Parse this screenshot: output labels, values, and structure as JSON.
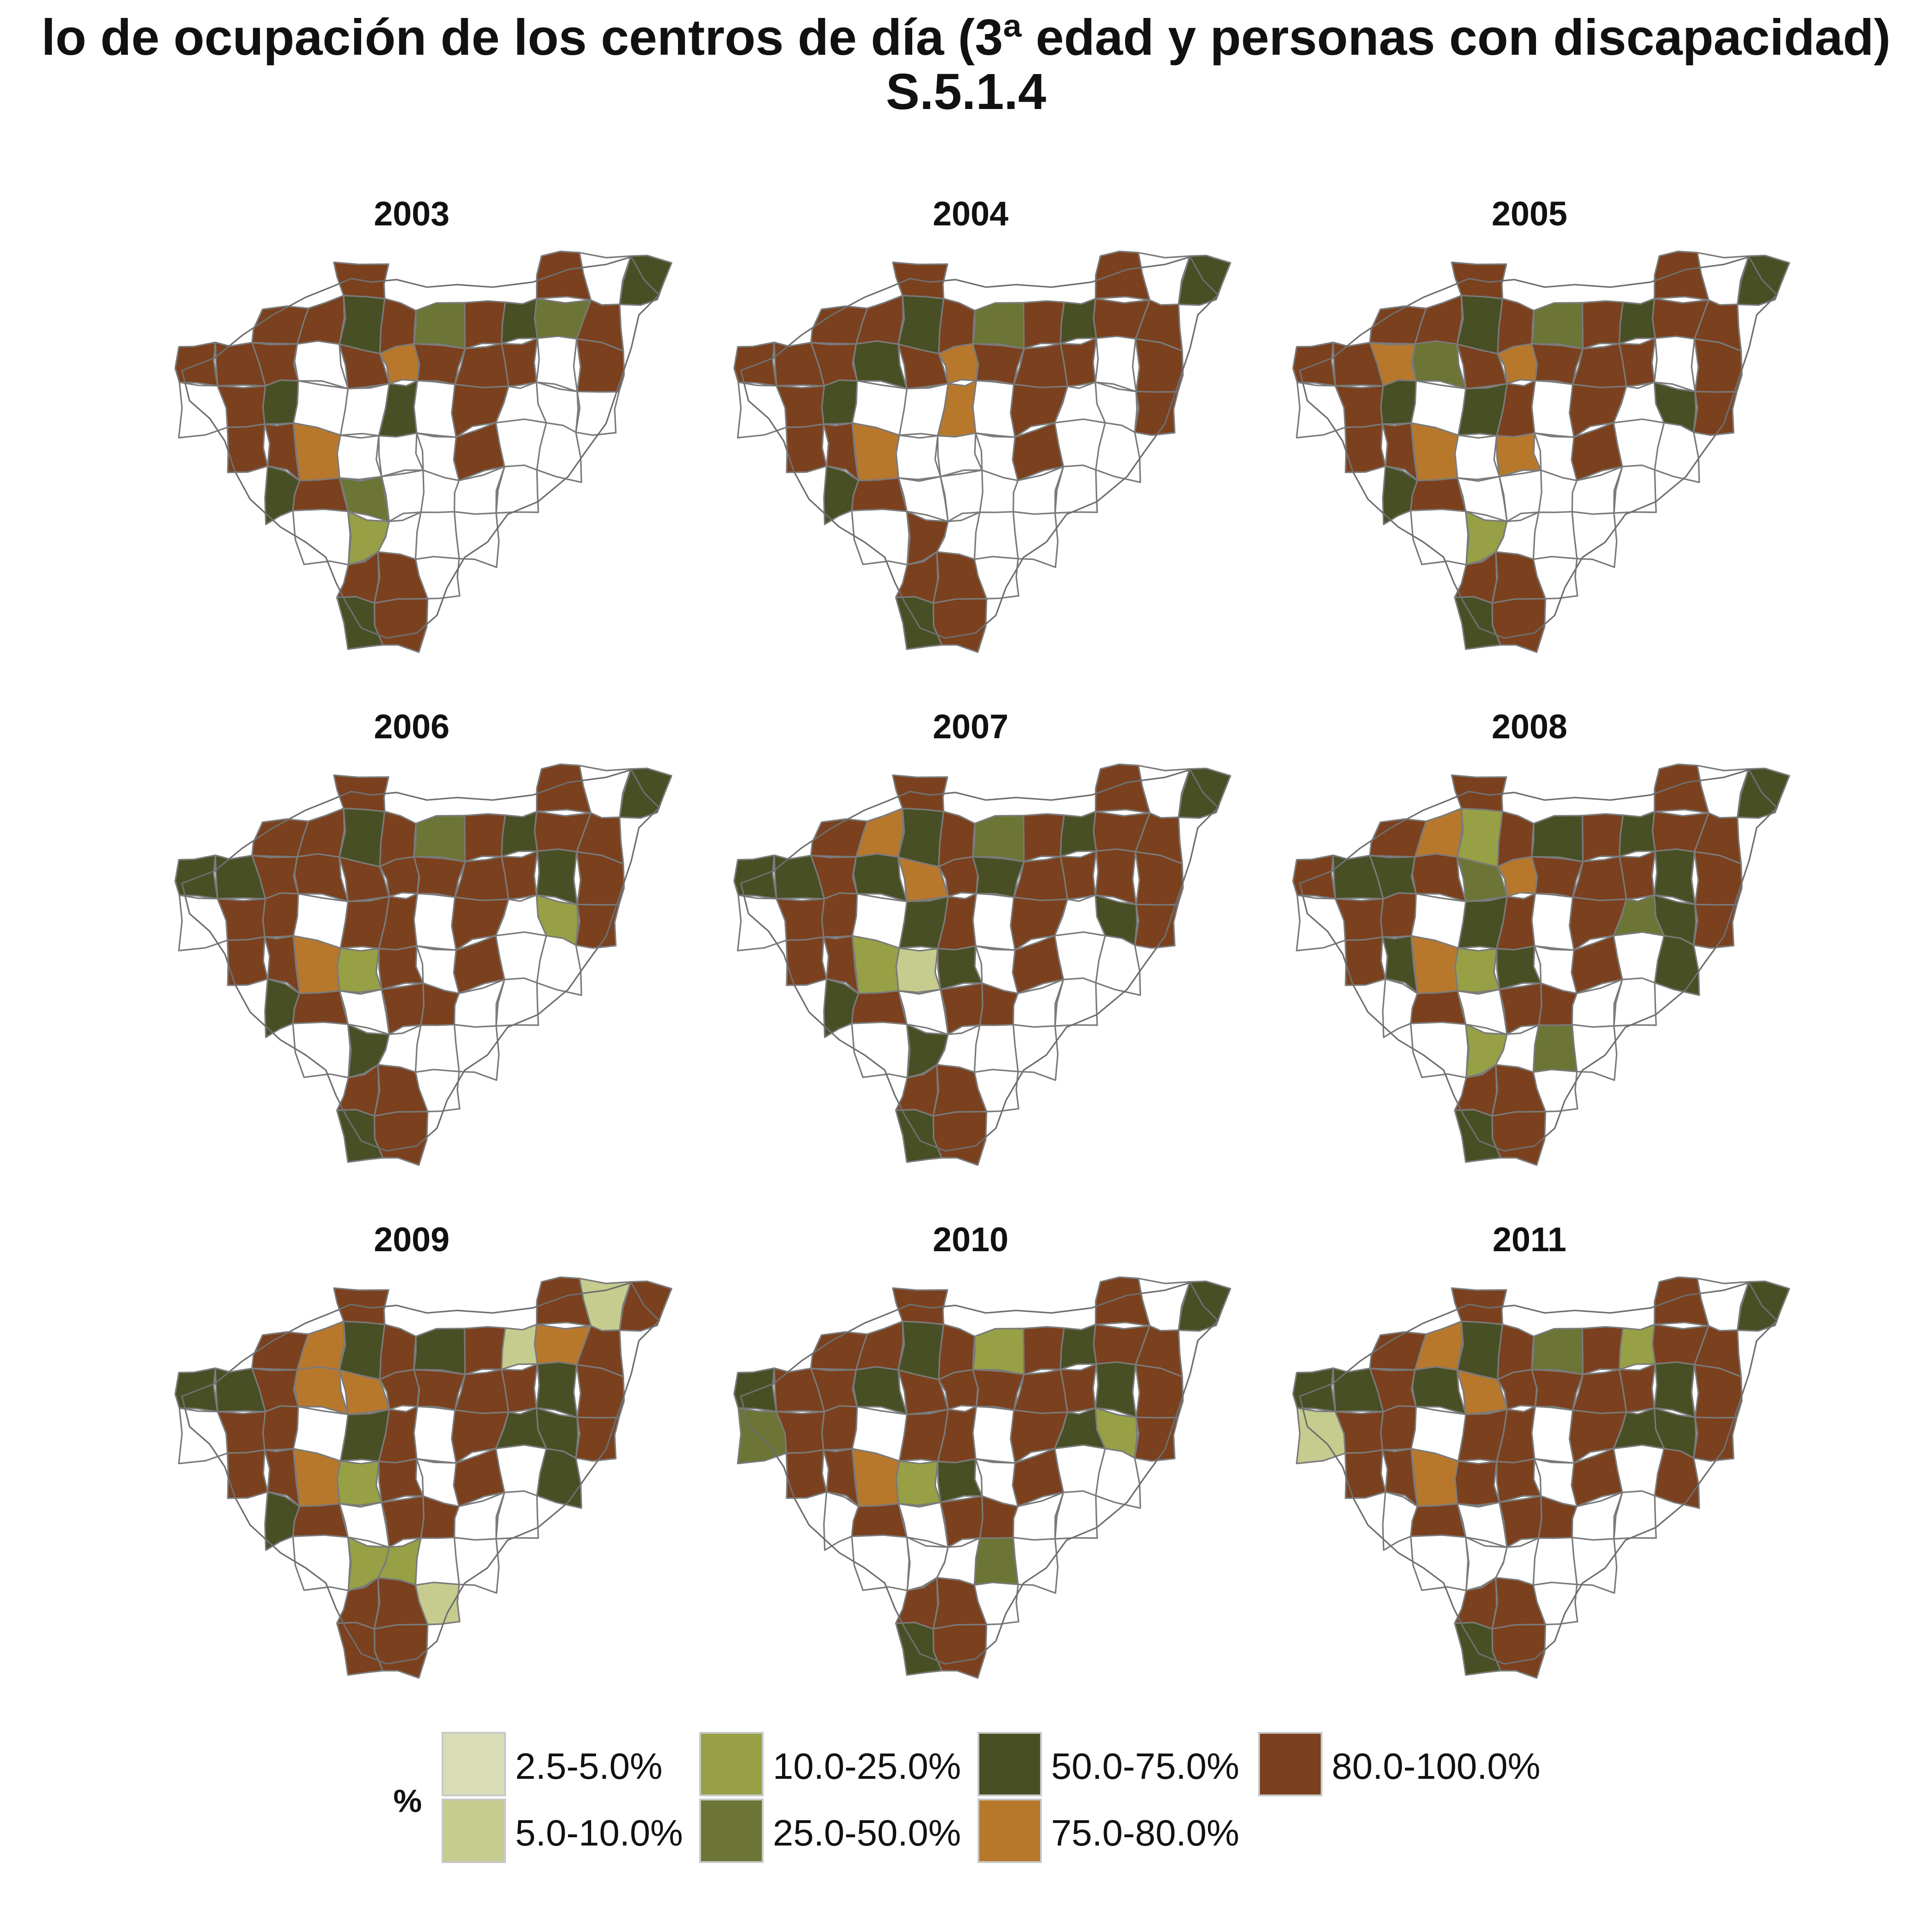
{
  "title": {
    "line1": "lo de ocupación de los centros de día (3ª edad y personas con discapacidad)",
    "line2": "S.5.1.4"
  },
  "legend": {
    "title": "%",
    "items": [
      {
        "label": "2.5-5.0%",
        "color": "#d8ddb8"
      },
      {
        "label": "5.0-10.0%",
        "color": "#c5cc8e"
      },
      {
        "label": "10.0-25.0%",
        "color": "#97a045"
      },
      {
        "label": "25.0-50.0%",
        "color": "#6c7535"
      },
      {
        "label": "50.0-75.0%",
        "color": "#484f24"
      },
      {
        "label": "75.0-80.0%",
        "color": "#b8782c"
      },
      {
        "label": "80.0-100.0%",
        "color": "#7b401d"
      }
    ]
  },
  "maps": [
    {
      "year": "2003",
      "fills": [
        6,
        6,
        0,
        4,
        6,
        6,
        4,
        6,
        3,
        6,
        4,
        3,
        6,
        6,
        6,
        6,
        0,
        6,
        5,
        6,
        6,
        6,
        0,
        6,
        0,
        6,
        4,
        0,
        0,
        4,
        0,
        6,
        0,
        0,
        0,
        6,
        6,
        5,
        0,
        0,
        0,
        6,
        0,
        0,
        4,
        6,
        3,
        0,
        0,
        0,
        0,
        0,
        2,
        0,
        0,
        0
      ]
    },
    {
      "year": "2004",
      "fills": [
        6,
        6,
        0,
        4,
        6,
        6,
        4,
        6,
        3,
        6,
        4,
        6,
        6,
        6,
        6,
        6,
        4,
        6,
        5,
        6,
        6,
        6,
        0,
        6,
        0,
        6,
        4,
        0,
        0,
        5,
        0,
        6,
        0,
        0,
        6,
        6,
        6,
        5,
        0,
        0,
        0,
        6,
        0,
        0,
        4,
        6,
        0,
        0,
        0,
        0,
        0,
        0,
        6,
        0,
        0,
        0
      ]
    },
    {
      "year": "2005",
      "fills": [
        6,
        6,
        0,
        4,
        6,
        6,
        4,
        6,
        3,
        6,
        4,
        6,
        6,
        6,
        6,
        5,
        3,
        6,
        5,
        6,
        6,
        6,
        0,
        6,
        0,
        6,
        4,
        0,
        4,
        6,
        0,
        6,
        0,
        4,
        6,
        6,
        6,
        5,
        0,
        5,
        0,
        6,
        0,
        0,
        4,
        6,
        0,
        0,
        0,
        0,
        0,
        0,
        2,
        0,
        0,
        0
      ]
    },
    {
      "year": "2006",
      "fills": [
        6,
        6,
        0,
        4,
        6,
        6,
        4,
        6,
        3,
        6,
        4,
        6,
        6,
        4,
        4,
        6,
        6,
        6,
        6,
        6,
        6,
        6,
        4,
        6,
        0,
        6,
        6,
        0,
        6,
        6,
        0,
        6,
        0,
        2,
        6,
        6,
        6,
        5,
        2,
        6,
        0,
        6,
        0,
        0,
        4,
        6,
        0,
        6,
        6,
        0,
        0,
        0,
        4,
        0,
        0,
        0
      ]
    },
    {
      "year": "2007",
      "fills": [
        6,
        6,
        0,
        4,
        6,
        5,
        4,
        6,
        3,
        6,
        4,
        6,
        6,
        4,
        4,
        6,
        4,
        5,
        6,
        4,
        6,
        6,
        6,
        6,
        0,
        6,
        6,
        0,
        4,
        6,
        0,
        6,
        0,
        4,
        6,
        6,
        6,
        2,
        1,
        4,
        0,
        6,
        0,
        0,
        4,
        6,
        0,
        6,
        6,
        0,
        0,
        0,
        4,
        0,
        0,
        0
      ]
    },
    {
      "year": "2008",
      "fills": [
        6,
        6,
        0,
        4,
        6,
        5,
        2,
        6,
        4,
        6,
        4,
        6,
        6,
        6,
        4,
        4,
        6,
        3,
        5,
        6,
        6,
        6,
        4,
        6,
        0,
        6,
        6,
        0,
        4,
        6,
        0,
        6,
        3,
        4,
        6,
        6,
        4,
        5,
        2,
        4,
        0,
        6,
        0,
        4,
        0,
        6,
        0,
        6,
        6,
        0,
        0,
        0,
        2,
        0,
        3,
        0
      ]
    },
    {
      "year": "2009",
      "fills": [
        6,
        6,
        1,
        6,
        6,
        5,
        4,
        6,
        4,
        6,
        1,
        5,
        6,
        4,
        4,
        6,
        5,
        5,
        6,
        6,
        6,
        6,
        4,
        6,
        0,
        6,
        6,
        0,
        4,
        6,
        0,
        6,
        4,
        4,
        6,
        6,
        6,
        5,
        2,
        6,
        0,
        6,
        0,
        4,
        4,
        6,
        0,
        6,
        6,
        0,
        0,
        0,
        2,
        2,
        0,
        0
      ]
    },
    {
      "year": "2010",
      "fills": [
        6,
        6,
        0,
        4,
        6,
        6,
        4,
        6,
        2,
        6,
        4,
        6,
        6,
        4,
        6,
        6,
        4,
        6,
        6,
        6,
        6,
        6,
        4,
        6,
        3,
        6,
        6,
        0,
        6,
        6,
        0,
        6,
        4,
        2,
        6,
        6,
        6,
        5,
        2,
        4,
        0,
        6,
        0,
        0,
        0,
        6,
        0,
        6,
        6,
        0,
        0,
        0,
        0,
        0,
        3,
        0
      ]
    },
    {
      "year": "2011",
      "fills": [
        6,
        6,
        0,
        4,
        6,
        5,
        4,
        6,
        3,
        6,
        2,
        6,
        6,
        4,
        4,
        6,
        4,
        5,
        6,
        6,
        6,
        6,
        4,
        6,
        1,
        6,
        6,
        0,
        6,
        6,
        0,
        6,
        4,
        4,
        6,
        6,
        6,
        5,
        6,
        6,
        0,
        6,
        0,
        6,
        0,
        6,
        0,
        6,
        6,
        0,
        0,
        0,
        0,
        0,
        0,
        0
      ]
    }
  ]
}
